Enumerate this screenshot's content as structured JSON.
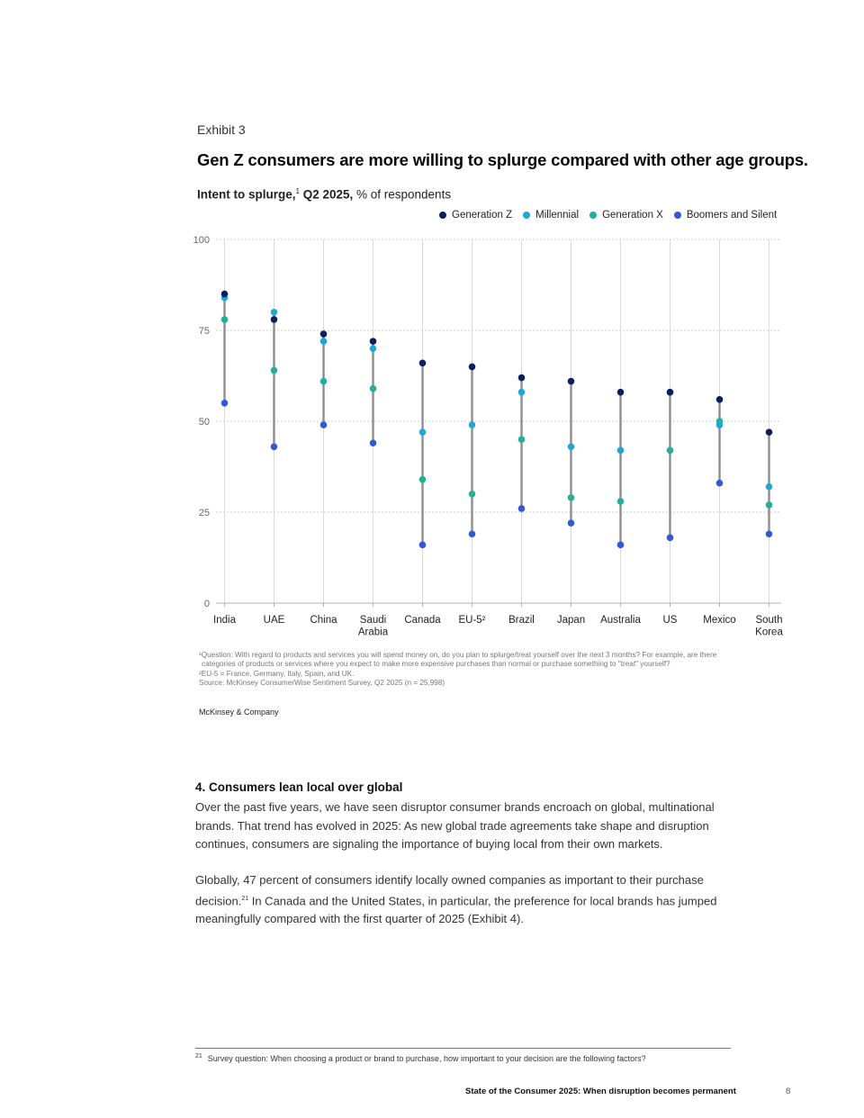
{
  "exhibit_label": "Exhibit 3",
  "chart_data": {
    "type": "dot-range",
    "title": "Gen Z consumers are more willing to splurge compared with other age groups.",
    "subtitle_bold": "Intent to splurge,",
    "subtitle_sup": "1",
    "subtitle_bold2": " Q2 2025,",
    "subtitle_rest": " % of respondents",
    "ylim": [
      0,
      100
    ],
    "yticks": [
      "0",
      "25",
      "50",
      "75",
      "100"
    ],
    "grid": true,
    "legend_position": "top-right",
    "categories": [
      "India",
      "UAE",
      "China",
      "Saudi Arabia",
      "Canada",
      "EU-5",
      "Brazil",
      "Japan",
      "Australia",
      "US",
      "Mexico",
      "South Korea"
    ],
    "category_label_lines": [
      [
        "India"
      ],
      [
        "UAE"
      ],
      [
        "China"
      ],
      [
        "Saudi",
        "Arabia"
      ],
      [
        "Canada"
      ],
      [
        "EU-5²"
      ],
      [
        "Brazil"
      ],
      [
        "Japan"
      ],
      [
        "Australia"
      ],
      [
        "US"
      ],
      [
        "Mexico"
      ],
      [
        "South",
        "Korea"
      ]
    ],
    "series": [
      {
        "name": "Generation Z",
        "color": "#0b1f5c",
        "values": [
          85,
          78,
          74,
          72,
          66,
          65,
          62,
          61,
          58,
          58,
          56,
          47
        ]
      },
      {
        "name": "Millennial",
        "color": "#1ea6d9",
        "values": [
          84,
          80,
          72,
          70,
          47,
          49,
          58,
          43,
          42,
          58,
          49,
          32
        ]
      },
      {
        "name": "Generation X",
        "color": "#22b09a",
        "values": [
          78,
          64,
          61,
          59,
          34,
          30,
          45,
          29,
          28,
          42,
          50,
          27
        ]
      },
      {
        "name": "Boomers and Silent",
        "color": "#3358d6",
        "values": [
          55,
          43,
          49,
          44,
          16,
          19,
          26,
          22,
          16,
          18,
          33,
          19
        ]
      }
    ]
  },
  "notes": {
    "note1_line1": "¹Question: With regard to products and services you will spend money on, do you plan to splurge/treat yourself over the next 3 months? For example, are there",
    "note1_line2": "categories of products or services where you expect to make more expensive purchases than normal or purchase something to \"treat\" yourself?",
    "note2": "²EU-5 = France, Germany, Italy, Spain, and UK.",
    "source": "Source: McKinsey ConsumerWise Sentiment Survey, Q2 2025 (n = 25,998)"
  },
  "publisher": "McKinsey & Company",
  "section": {
    "heading": "4. Consumers lean local over global",
    "para1": "Over the past five years, we have seen disruptor consumer brands encroach on global, multinational brands. That trend has evolved in 2025: As new global trade agreements take shape and disruption continues, consumers are signaling the importance of buying local from their own markets.",
    "para2_a": "Globally, 47 percent of consumers identify locally owned companies as important to their purchase decision.",
    "para2_sup": "21",
    "para2_b": " In Canada and the United States, in particular, the preference for local brands has jumped meaningfully compared with the first quarter of 2025 (Exhibit 4)."
  },
  "footnote": {
    "number": "21",
    "text": "Survey question: When choosing a product or brand to purchase, how important to your decision are the following factors?"
  },
  "running_footer": "State of the Consumer 2025: When disruption becomes permanent",
  "page_number": "8"
}
